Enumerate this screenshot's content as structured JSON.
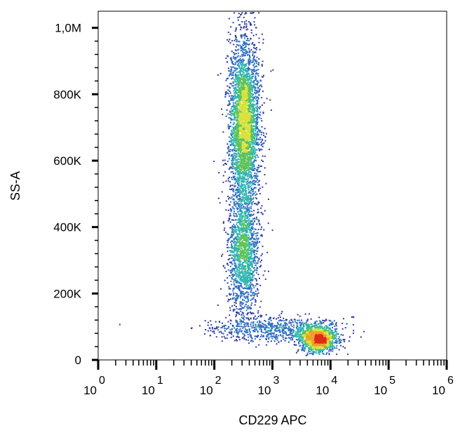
{
  "chart_data": {
    "type": "scatter",
    "subtype": "flow-cytometry-density-dot-plot",
    "title": "",
    "xlabel": "CD229 APC",
    "ylabel": "SS-A",
    "x_scale": "log",
    "xlim": [
      1,
      1000000
    ],
    "ylim": [
      0,
      1050000
    ],
    "y_ticks": [
      {
        "value": 0,
        "label": "0"
      },
      {
        "value": 200000,
        "label": "200K"
      },
      {
        "value": 400000,
        "label": "400K"
      },
      {
        "value": 600000,
        "label": "600K"
      },
      {
        "value": 800000,
        "label": "800K"
      },
      {
        "value": 1000000,
        "label": "1,0M"
      }
    ],
    "x_ticks": [
      {
        "value": 1,
        "base": "10",
        "exp": "0"
      },
      {
        "value": 10,
        "base": "10",
        "exp": "1"
      },
      {
        "value": 100,
        "base": "10",
        "exp": "2"
      },
      {
        "value": 1000,
        "base": "10",
        "exp": "3"
      },
      {
        "value": 10000,
        "base": "10",
        "exp": "4"
      },
      {
        "value": 100000,
        "base": "10",
        "exp": "5"
      },
      {
        "value": 1000000,
        "base": "10",
        "exp": "6"
      }
    ],
    "grid": false,
    "legend": "none",
    "populations": [
      {
        "center_x": 320,
        "center_y": 710000,
        "sd_log10_x": 0.13,
        "sd_y": 130000,
        "share": 0.5
      },
      {
        "center_x": 310,
        "center_y": 320000,
        "sd_log10_x": 0.13,
        "sd_y": 90000,
        "share": 0.22
      },
      {
        "center_x": 6000,
        "center_y": 65000,
        "sd_log10_x": 0.16,
        "sd_y": 20000,
        "share": 0.18
      },
      {
        "center_x": 1000,
        "center_y": 95000,
        "sd_log10_x": 0.55,
        "sd_y": 18000,
        "share": 0.1
      }
    ],
    "density_colors": [
      "#2d3a9e",
      "#2f6fc0",
      "#2fb6b0",
      "#5cc25a",
      "#d8e23a",
      "#f0a028",
      "#e02a1c"
    ]
  }
}
